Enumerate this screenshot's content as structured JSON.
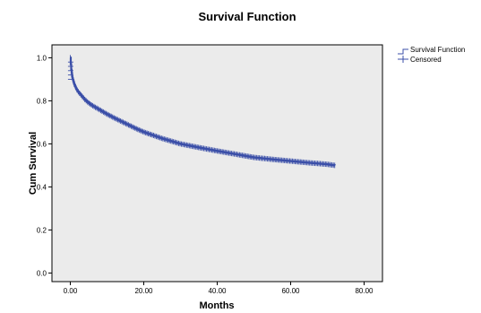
{
  "chart_data": {
    "type": "line",
    "title": "Survival Function",
    "xlabel": "Months",
    "ylabel": "Cum Survival",
    "xlim": [
      -5,
      85
    ],
    "ylim": [
      -0.04,
      1.06
    ],
    "x_ticks": [
      0,
      20,
      40,
      60,
      80
    ],
    "x_tick_labels": [
      "0.00",
      "20.00",
      "40.00",
      "60.00",
      "80.00"
    ],
    "y_ticks": [
      0.0,
      0.2,
      0.4,
      0.6,
      0.8,
      1.0
    ],
    "y_tick_labels": [
      "0.0",
      "0.2",
      "0.4",
      "0.6",
      "0.8",
      "1.0"
    ],
    "grid": false,
    "legend_position": "top-right",
    "legend": [
      {
        "label": "Survival Function",
        "marker": "step-line"
      },
      {
        "label": "Censored",
        "marker": "plus"
      }
    ],
    "series": [
      {
        "name": "Survival Function",
        "color": "#3b4fa8",
        "x": [
          0,
          0.2,
          0.5,
          1,
          1.5,
          2,
          3,
          4,
          5,
          6,
          8,
          10,
          12,
          15,
          18,
          20,
          25,
          30,
          35,
          40,
          45,
          50,
          55,
          60,
          65,
          70,
          72
        ],
        "y": [
          1.0,
          0.95,
          0.91,
          0.88,
          0.86,
          0.845,
          0.825,
          0.805,
          0.79,
          0.778,
          0.758,
          0.738,
          0.72,
          0.695,
          0.67,
          0.655,
          0.625,
          0.6,
          0.583,
          0.567,
          0.552,
          0.537,
          0.528,
          0.52,
          0.512,
          0.505,
          0.5
        ]
      }
    ],
    "colors": {
      "plot_background": "#ebebeb",
      "series": "#3b4fa8",
      "axis": "#000000"
    }
  }
}
